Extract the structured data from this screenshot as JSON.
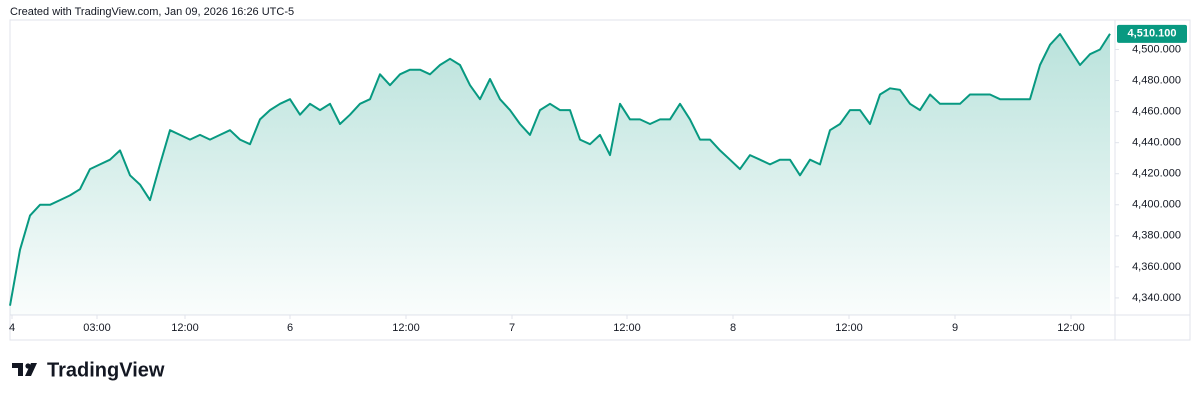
{
  "header": {
    "text": "Created with TradingView.com, Jan 09, 2026 16:26 UTC-5"
  },
  "chart_data": {
    "type": "area",
    "color": "#089981",
    "values": [
      4335,
      4371,
      4393,
      4400,
      4400,
      4403,
      4406,
      4410,
      4423,
      4426,
      4429,
      4435,
      4419,
      4413,
      4403,
      4426,
      4448,
      4445,
      4442,
      4445,
      4442,
      4445,
      4448,
      4442,
      4439,
      4455,
      4461,
      4465,
      4468,
      4458,
      4465,
      4461,
      4465,
      4452,
      4458,
      4465,
      4468,
      4484,
      4477,
      4484,
      4487,
      4487,
      4484,
      4490,
      4494,
      4490,
      4477,
      4468,
      4481,
      4468,
      4461,
      4452,
      4445,
      4461,
      4465,
      4461,
      4461,
      4442,
      4439,
      4445,
      4432,
      4465,
      4455,
      4455,
      4452,
      4455,
      4455,
      4465,
      4455,
      4442,
      4442,
      4435,
      4429,
      4423,
      4432,
      4429,
      4426,
      4429,
      4429,
      4419,
      4429,
      4426,
      4448,
      4452,
      4461,
      4461,
      4452,
      4471,
      4475,
      4474,
      4465,
      4461,
      4471,
      4465,
      4465,
      4465,
      4471,
      4471,
      4471,
      4468,
      4468,
      4468,
      4468,
      4490,
      4503,
      4510,
      4500,
      4490,
      4497,
      4500,
      4510.1
    ],
    "last_price": {
      "value": 4510.1,
      "label": "4,510.100"
    },
    "xlim": [
      0,
      110.5
    ],
    "xticks": [
      {
        "value": 0.2,
        "label": "4"
      },
      {
        "value": 8.7,
        "label": "03:00"
      },
      {
        "value": 17.5,
        "label": "12:00"
      },
      {
        "value": 28,
        "label": "6"
      },
      {
        "value": 39.6,
        "label": "12:00"
      },
      {
        "value": 50.2,
        "label": "7"
      },
      {
        "value": 61.7,
        "label": "12:00"
      },
      {
        "value": 72.3,
        "label": "8"
      },
      {
        "value": 83.9,
        "label": "12:00"
      },
      {
        "value": 94.5,
        "label": "9"
      },
      {
        "value": 106.1,
        "label": "12:00"
      }
    ],
    "ylim": [
      4329,
      4519
    ],
    "yticks": [
      {
        "value": 4340,
        "label": "4,340.000"
      },
      {
        "value": 4360,
        "label": "4,360.000"
      },
      {
        "value": 4380,
        "label": "4,380.000"
      },
      {
        "value": 4400,
        "label": "4,400.000"
      },
      {
        "value": 4420,
        "label": "4,420.000"
      },
      {
        "value": 4440,
        "label": "4,440.000"
      },
      {
        "value": 4460,
        "label": "4,460.000"
      },
      {
        "value": 4480,
        "label": "4,480.000"
      },
      {
        "value": 4500,
        "label": "4,500.000"
      }
    ]
  },
  "footer": {
    "brand": "TradingView"
  }
}
